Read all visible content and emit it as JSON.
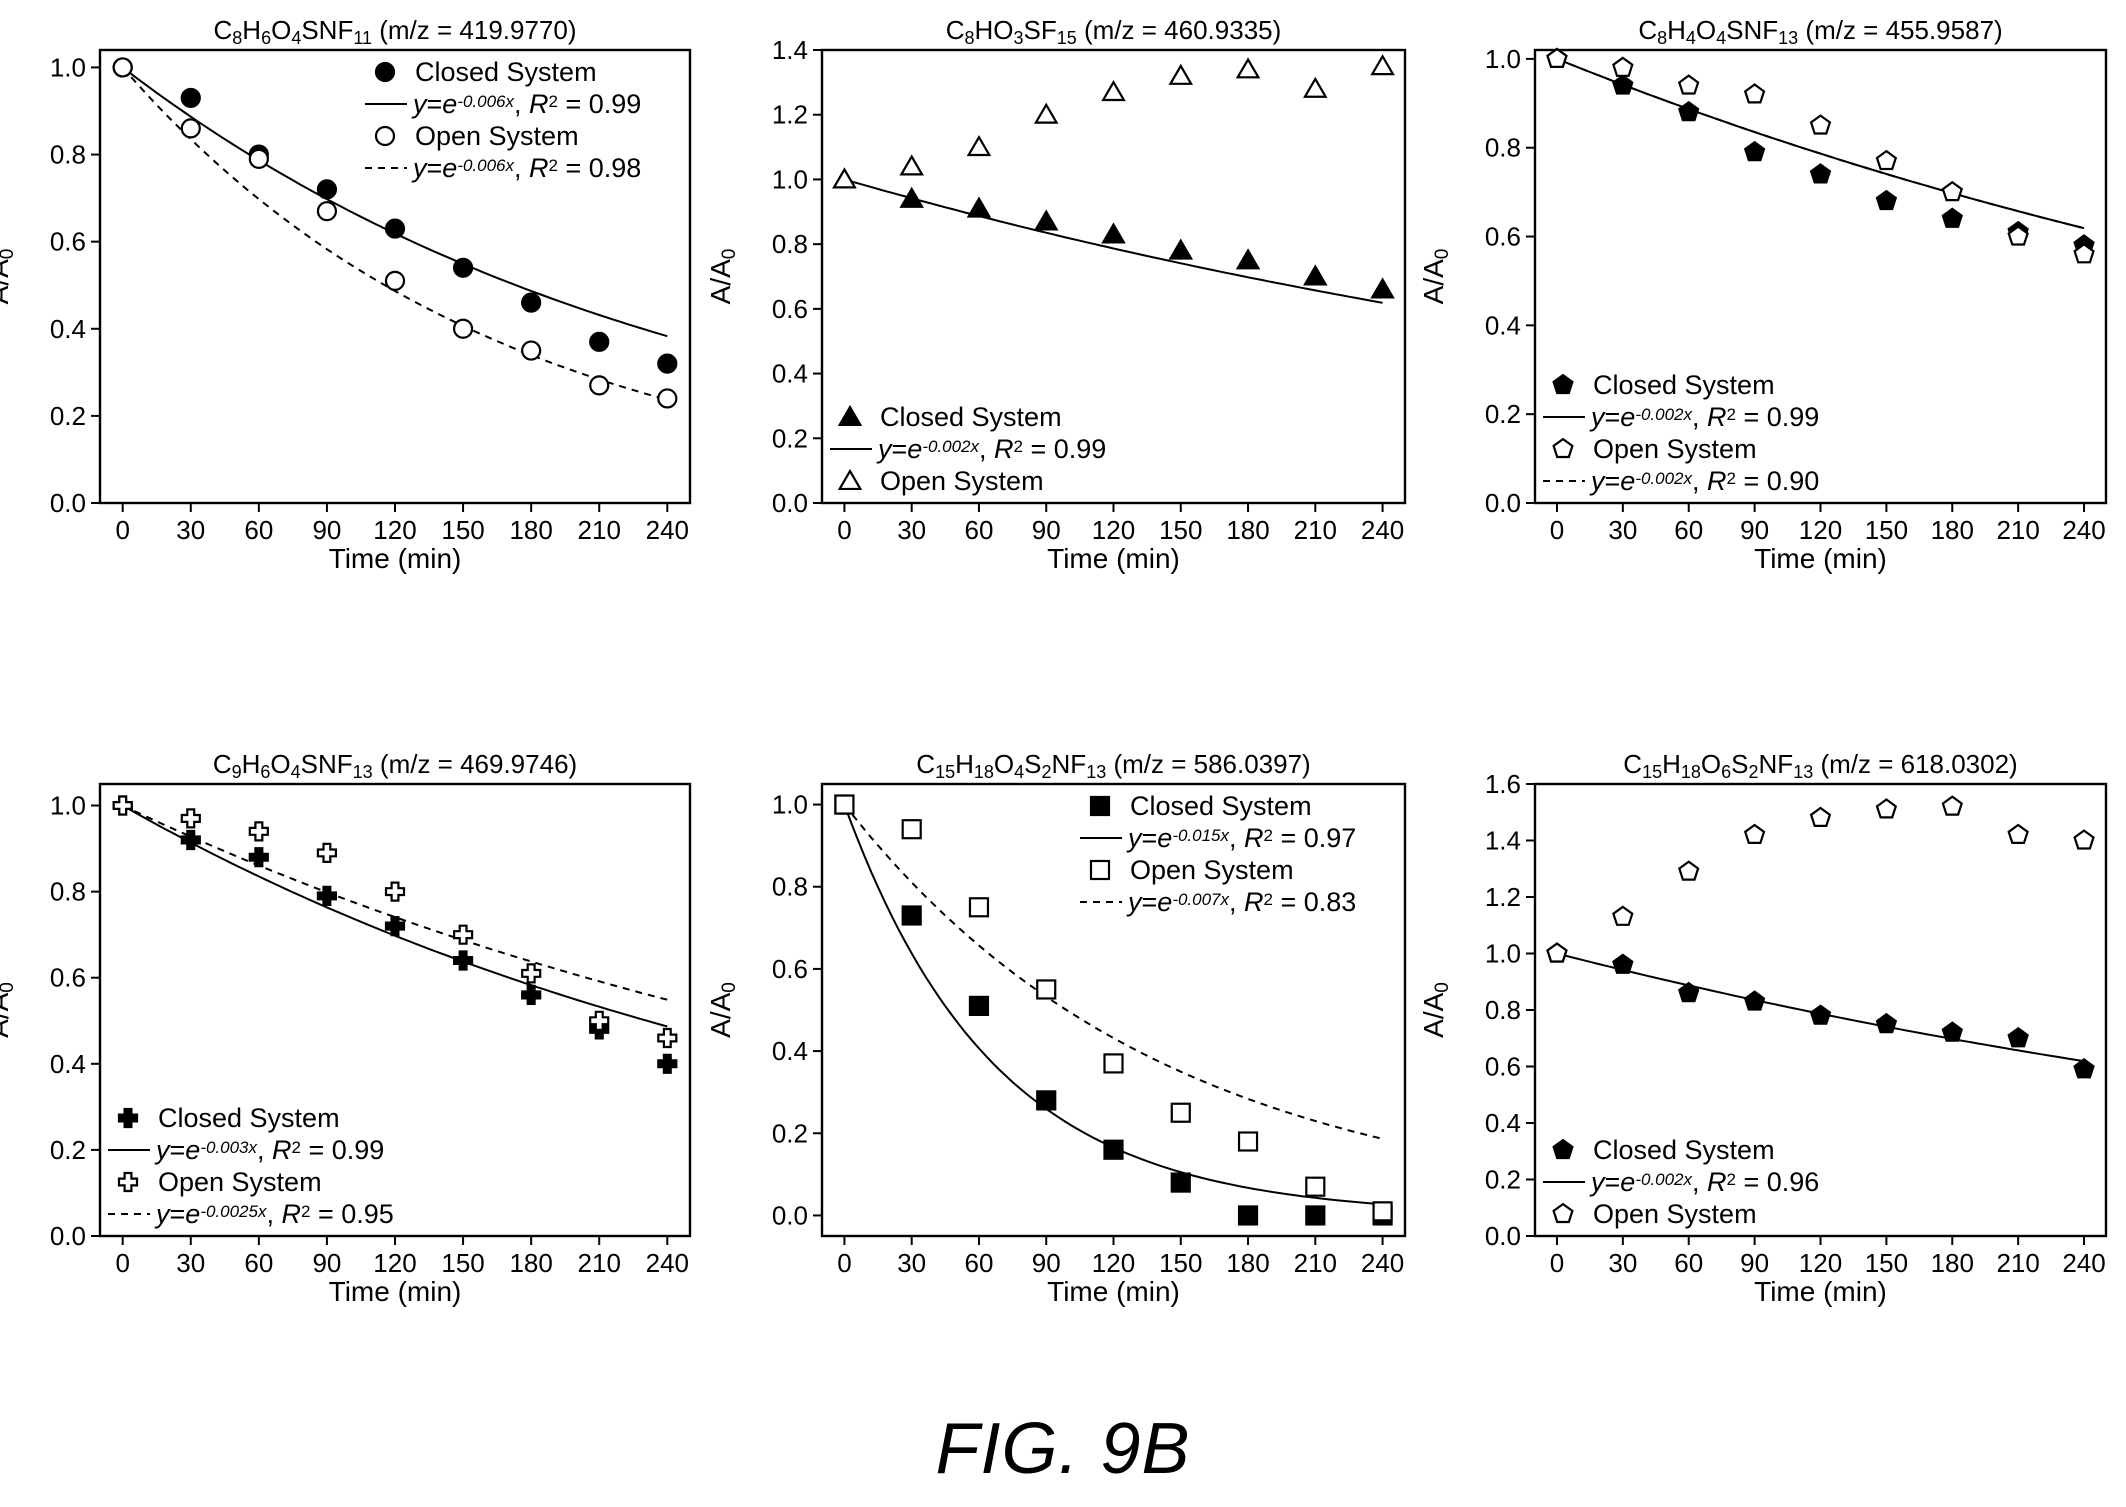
{
  "figure_label": "FIG. 9B",
  "chart_data": [
    {
      "type": "scatter",
      "title": "C8H6O4SNF11 (m/z = 419.9770)",
      "title_parts": [
        [
          "C",
          ""
        ],
        [
          "8",
          "sub"
        ],
        [
          "H",
          ""
        ],
        [
          "6",
          "sub"
        ],
        [
          "O",
          ""
        ],
        [
          "4",
          "sub"
        ],
        [
          "SNF",
          ""
        ],
        [
          "11",
          "sub"
        ],
        [
          " (m/z = 419.9770)",
          ""
        ]
      ],
      "xlabel": "Time (min)",
      "ylabel": "A/A0",
      "xlim": [
        -10,
        250
      ],
      "ylim": [
        0,
        1.04
      ],
      "xticks": [
        0,
        30,
        60,
        90,
        120,
        150,
        180,
        210,
        240
      ],
      "yticks": [
        0.0,
        0.2,
        0.4,
        0.6,
        0.8,
        1.0
      ],
      "ytick_labels": [
        "0.0",
        "0.2",
        "0.4",
        "0.6",
        "0.8",
        "1.0"
      ],
      "legend_position": "top-right",
      "series": [
        {
          "name": "Closed System",
          "marker": "circle",
          "filled": true,
          "x": [
            0,
            30,
            60,
            90,
            120,
            150,
            180,
            210,
            240
          ],
          "y": [
            1.0,
            0.93,
            0.8,
            0.72,
            0.63,
            0.54,
            0.46,
            0.37,
            0.32
          ],
          "fit": {
            "k": 0.004,
            "style": "solid",
            "label": "y=e-0.006x, R2 = 0.99",
            "rate": "-0.006x",
            "r2": "0.99"
          }
        },
        {
          "name": "Open System",
          "marker": "circle",
          "filled": false,
          "x": [
            0,
            30,
            60,
            90,
            120,
            150,
            180,
            210,
            240
          ],
          "y": [
            1.0,
            0.86,
            0.79,
            0.67,
            0.51,
            0.4,
            0.35,
            0.27,
            0.24
          ],
          "fit": {
            "k": 0.006,
            "style": "dashed",
            "label": "y=e-0.006x, R2 = 0.98",
            "rate": "-0.006x",
            "r2": "0.98"
          }
        }
      ]
    },
    {
      "type": "scatter",
      "title": "C8HO3SF15 (m/z = 460.9335)",
      "title_parts": [
        [
          "C",
          ""
        ],
        [
          "8",
          "sub"
        ],
        [
          "HO",
          ""
        ],
        [
          "3",
          "sub"
        ],
        [
          "SF",
          ""
        ],
        [
          "15",
          "sub"
        ],
        [
          " (m/z = 460.9335)",
          ""
        ]
      ],
      "xlabel": "Time (min)",
      "ylabel": "A/A0",
      "xlim": [
        -10,
        250
      ],
      "ylim": [
        0,
        1.4
      ],
      "xticks": [
        0,
        30,
        60,
        90,
        120,
        150,
        180,
        210,
        240
      ],
      "yticks": [
        0.0,
        0.2,
        0.4,
        0.6,
        0.8,
        1.0,
        1.2,
        1.4
      ],
      "ytick_labels": [
        "0.0",
        "0.2",
        "0.4",
        "0.6",
        "0.8",
        "1.0",
        "1.2",
        "1.4"
      ],
      "legend_position": "bottom-left",
      "series": [
        {
          "name": "Closed System",
          "marker": "triangle",
          "filled": true,
          "x": [
            0,
            30,
            60,
            90,
            120,
            150,
            180,
            210,
            240
          ],
          "y": [
            1.0,
            0.94,
            0.91,
            0.87,
            0.83,
            0.78,
            0.75,
            0.7,
            0.66
          ],
          "fit": {
            "k": 0.002,
            "style": "solid",
            "label": "y=e-0.002x, R2 = 0.99",
            "rate": "-0.002x",
            "r2": "0.99"
          }
        },
        {
          "name": "Open System",
          "marker": "triangle",
          "filled": false,
          "x": [
            0,
            30,
            60,
            90,
            120,
            150,
            180,
            210,
            240
          ],
          "y": [
            1.0,
            1.04,
            1.1,
            1.2,
            1.27,
            1.32,
            1.34,
            1.28,
            1.35
          ]
        }
      ]
    },
    {
      "type": "scatter",
      "title": "C8H4O4SNF13 (m/z = 455.9587)",
      "title_parts": [
        [
          "C",
          ""
        ],
        [
          "8",
          "sub"
        ],
        [
          "H",
          ""
        ],
        [
          "4",
          "sub"
        ],
        [
          "O",
          ""
        ],
        [
          "4",
          "sub"
        ],
        [
          "SNF",
          ""
        ],
        [
          "13",
          "sub"
        ],
        [
          " (m/z = 455.9587)",
          ""
        ]
      ],
      "xlabel": "Time (min)",
      "ylabel": "A/A0",
      "xlim": [
        -10,
        250
      ],
      "ylim": [
        0,
        1.02
      ],
      "xticks": [
        0,
        30,
        60,
        90,
        120,
        150,
        180,
        210,
        240
      ],
      "yticks": [
        0.0,
        0.2,
        0.4,
        0.6,
        0.8,
        1.0
      ],
      "ytick_labels": [
        "0.0",
        "0.2",
        "0.4",
        "0.6",
        "0.8",
        "1.0"
      ],
      "legend_position": "bottom-left",
      "series": [
        {
          "name": "Closed System",
          "marker": "pentagon",
          "filled": true,
          "x": [
            0,
            30,
            60,
            90,
            120,
            150,
            180,
            210,
            240
          ],
          "y": [
            1.0,
            0.94,
            0.88,
            0.79,
            0.74,
            0.68,
            0.64,
            0.61,
            0.58
          ],
          "fit": {
            "k": 0.002,
            "style": "solid",
            "label": "y=e-0.002x, R2 = 0.99",
            "rate": "-0.002x",
            "r2": "0.99"
          }
        },
        {
          "name": "Open System",
          "marker": "pentagon",
          "filled": false,
          "x": [
            0,
            30,
            60,
            90,
            120,
            150,
            180,
            210,
            240
          ],
          "y": [
            1.0,
            0.98,
            0.94,
            0.92,
            0.85,
            0.77,
            0.7,
            0.6,
            0.56
          ],
          "fit": {
            "k": 0.002,
            "style": "dashed",
            "label": "y=e-0.002x, R2 = 0.90",
            "rate": "-0.002x",
            "r2": "0.90"
          }
        }
      ]
    },
    {
      "type": "scatter",
      "title": "C9H6O4SNF13 (m/z = 469.9746)",
      "title_parts": [
        [
          "C",
          ""
        ],
        [
          "9",
          "sub"
        ],
        [
          "H",
          ""
        ],
        [
          "6",
          "sub"
        ],
        [
          "O",
          ""
        ],
        [
          "4",
          "sub"
        ],
        [
          "SNF",
          ""
        ],
        [
          "13",
          "sub"
        ],
        [
          " (m/z = 469.9746)",
          ""
        ]
      ],
      "xlabel": "Time (min)",
      "ylabel": "A/A0",
      "xlim": [
        -10,
        250
      ],
      "ylim": [
        0,
        1.05
      ],
      "xticks": [
        0,
        30,
        60,
        90,
        120,
        150,
        180,
        210,
        240
      ],
      "yticks": [
        0.0,
        0.2,
        0.4,
        0.6,
        0.8,
        1.0
      ],
      "ytick_labels": [
        "0.0",
        "0.2",
        "0.4",
        "0.6",
        "0.8",
        "1.0"
      ],
      "legend_position": "bottom-left",
      "series": [
        {
          "name": "Closed System",
          "marker": "cross",
          "filled": true,
          "x": [
            0,
            30,
            60,
            90,
            120,
            150,
            180,
            210,
            240
          ],
          "y": [
            1.0,
            0.92,
            0.88,
            0.79,
            0.72,
            0.64,
            0.56,
            0.48,
            0.4
          ],
          "fit": {
            "k": 0.003,
            "style": "solid",
            "label": "y=e-0.003x, R2 = 0.99",
            "rate": "-0.003x",
            "r2": "0.99"
          }
        },
        {
          "name": "Open System",
          "marker": "cross",
          "filled": false,
          "x": [
            0,
            30,
            60,
            90,
            120,
            150,
            180,
            210,
            240
          ],
          "y": [
            1.0,
            0.97,
            0.94,
            0.89,
            0.8,
            0.7,
            0.61,
            0.5,
            0.46
          ],
          "fit": {
            "k": 0.0025,
            "style": "dashed",
            "label": "y=e-0.0025x, R2 = 0.95",
            "rate": "-0.0025x",
            "r2": "0.95"
          }
        }
      ]
    },
    {
      "type": "scatter",
      "title": "C15H18O4S2NF13 (m/z = 586.0397)",
      "title_parts": [
        [
          "C",
          ""
        ],
        [
          "15",
          "sub"
        ],
        [
          "H",
          ""
        ],
        [
          "18",
          "sub"
        ],
        [
          "O",
          ""
        ],
        [
          "4",
          "sub"
        ],
        [
          "S",
          ""
        ],
        [
          "2",
          "sub"
        ],
        [
          "NF",
          ""
        ],
        [
          "13",
          "sub"
        ],
        [
          " (m/z = 586.0397)",
          ""
        ]
      ],
      "xlabel": "Time (min)",
      "ylabel": "A/A0",
      "xlim": [
        -10,
        250
      ],
      "ylim": [
        -0.05,
        1.05
      ],
      "xticks": [
        0,
        30,
        60,
        90,
        120,
        150,
        180,
        210,
        240
      ],
      "yticks": [
        0.0,
        0.2,
        0.4,
        0.6,
        0.8,
        1.0
      ],
      "ytick_labels": [
        "0.0",
        "0.2",
        "0.4",
        "0.6",
        "0.8",
        "1.0"
      ],
      "legend_position": "top-right",
      "series": [
        {
          "name": "Closed System",
          "marker": "square",
          "filled": true,
          "x": [
            0,
            30,
            60,
            90,
            120,
            150,
            180,
            210,
            240
          ],
          "y": [
            1.0,
            0.73,
            0.51,
            0.28,
            0.16,
            0.08,
            0.0,
            0.0,
            0.0
          ],
          "fit": {
            "k": 0.015,
            "style": "solid",
            "label": "y=e-0.015x, R2 = 0.97",
            "rate": "-0.015x",
            "r2": "0.97"
          }
        },
        {
          "name": "Open System",
          "marker": "square",
          "filled": false,
          "x": [
            0,
            30,
            60,
            90,
            120,
            150,
            180,
            210,
            240
          ],
          "y": [
            1.0,
            0.94,
            0.75,
            0.55,
            0.37,
            0.25,
            0.18,
            0.07,
            0.01
          ],
          "fit": {
            "k": 0.007,
            "style": "dashed",
            "label": "y=e-0.007x, R2 = 0.83",
            "rate": "-0.007x",
            "r2": "0.83"
          }
        }
      ]
    },
    {
      "type": "scatter",
      "title": "C15H18O6S2NF13 (m/z = 618.0302)",
      "title_parts": [
        [
          "C",
          ""
        ],
        [
          "15",
          "sub"
        ],
        [
          "H",
          ""
        ],
        [
          "18",
          "sub"
        ],
        [
          "O",
          ""
        ],
        [
          "6",
          "sub"
        ],
        [
          "S",
          ""
        ],
        [
          "2",
          "sub"
        ],
        [
          "NF",
          ""
        ],
        [
          "13",
          "sub"
        ],
        [
          " (m/z = 618.0302)",
          ""
        ]
      ],
      "xlabel": "Time (min)",
      "ylabel": "A/A0",
      "xlim": [
        -10,
        250
      ],
      "ylim": [
        0,
        1.6
      ],
      "xticks": [
        0,
        30,
        60,
        90,
        120,
        150,
        180,
        210,
        240
      ],
      "yticks": [
        0.0,
        0.2,
        0.4,
        0.6,
        0.8,
        1.0,
        1.2,
        1.4,
        1.6
      ],
      "ytick_labels": [
        "0.0",
        "0.2",
        "0.4",
        "0.6",
        "0.8",
        "1.0",
        "1.2",
        "1.4",
        "1.6"
      ],
      "legend_position": "bottom-left",
      "series": [
        {
          "name": "Closed System",
          "marker": "pentagon",
          "filled": true,
          "x": [
            0,
            30,
            60,
            90,
            120,
            150,
            180,
            210,
            240
          ],
          "y": [
            1.0,
            0.96,
            0.86,
            0.83,
            0.78,
            0.75,
            0.72,
            0.7,
            0.59
          ],
          "fit": {
            "k": 0.002,
            "style": "solid",
            "label": "y=e-0.002x, R2 = 0.96",
            "rate": "-0.002x",
            "r2": "0.96"
          }
        },
        {
          "name": "Open System",
          "marker": "pentagon",
          "filled": false,
          "x": [
            0,
            30,
            60,
            90,
            120,
            150,
            180,
            210,
            240
          ],
          "y": [
            1.0,
            1.13,
            1.29,
            1.42,
            1.48,
            1.51,
            1.52,
            1.42,
            1.4
          ]
        }
      ]
    }
  ]
}
